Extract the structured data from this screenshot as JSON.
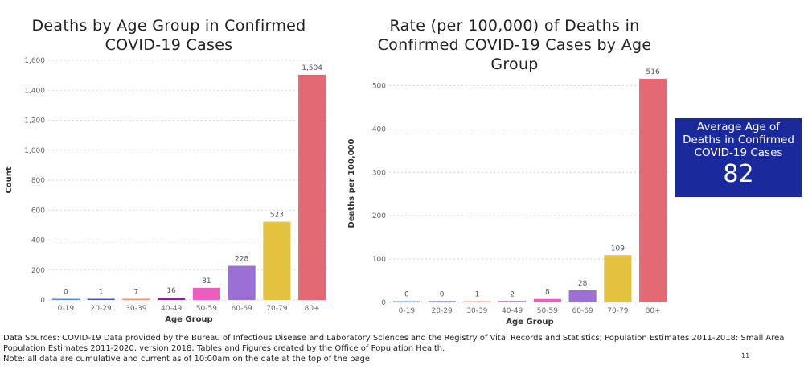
{
  "chart_data": [
    {
      "type": "bar",
      "title": "Deaths by Age Group in Confirmed COVID-19 Cases",
      "xlabel": "Age Group",
      "ylabel": "Count",
      "ylim": [
        0,
        1600
      ],
      "yticks": [
        0,
        200,
        400,
        600,
        800,
        1000,
        1200,
        1400,
        1600
      ],
      "ytick_labels": [
        "0",
        "200",
        "400",
        "600",
        "800",
        "1,000",
        "1,200",
        "1,400",
        "1,600"
      ],
      "categories": [
        "0-19",
        "20-29",
        "30-39",
        "40-49",
        "50-59",
        "60-69",
        "70-79",
        "80+"
      ],
      "values": [
        0,
        1,
        7,
        16,
        81,
        228,
        523,
        1504
      ],
      "value_labels": [
        "0",
        "1",
        "7",
        "16",
        "81",
        "228",
        "523",
        "1,504"
      ],
      "colors": [
        "#4c8fd6",
        "#4455b8",
        "#f2956b",
        "#7a2a8c",
        "#e85fc0",
        "#9b6fd3",
        "#e2c23f",
        "#e36a74"
      ],
      "grid": true
    },
    {
      "type": "bar",
      "title": "Rate (per 100,000) of Deaths in Confirmed COVID-19 Cases by Age Group",
      "xlabel": "Age Group",
      "ylabel": "Deaths per 100,000",
      "ylim": [
        0,
        540
      ],
      "yticks": [
        0,
        100,
        200,
        300,
        400,
        500
      ],
      "ytick_labels": [
        "0",
        "100",
        "200",
        "300",
        "400",
        "500"
      ],
      "categories": [
        "0-19",
        "20-29",
        "30-39",
        "40-49",
        "50-59",
        "60-69",
        "70-79",
        "80+"
      ],
      "values": [
        0,
        0,
        1,
        2,
        8,
        28,
        109,
        516
      ],
      "value_labels": [
        "0",
        "0",
        "1",
        "2",
        "8",
        "28",
        "109",
        "516"
      ],
      "colors": [
        "#4c8fd6",
        "#4455b8",
        "#f2956b",
        "#7a2a8c",
        "#e85fc0",
        "#9b6fd3",
        "#e2c23f",
        "#e36a74"
      ],
      "grid": true
    }
  ],
  "kpi": {
    "title": "Average Age of Deaths in Confirmed COVID-19 Cases",
    "value": "82"
  },
  "footer": {
    "sources": "Data Sources: COVID-19 Data provided by the Bureau of Infectious Disease and Laboratory Sciences and the Registry of Vital Records and Statistics; Population Estimates 2011-2018: Small Area Population Estimates 2011-2020, version 2018; Tables and Figures created by the Office of Population Health.",
    "note": "Note: all data are cumulative and current as of 10:00am on the date at the top of the page"
  },
  "page_number": "11"
}
